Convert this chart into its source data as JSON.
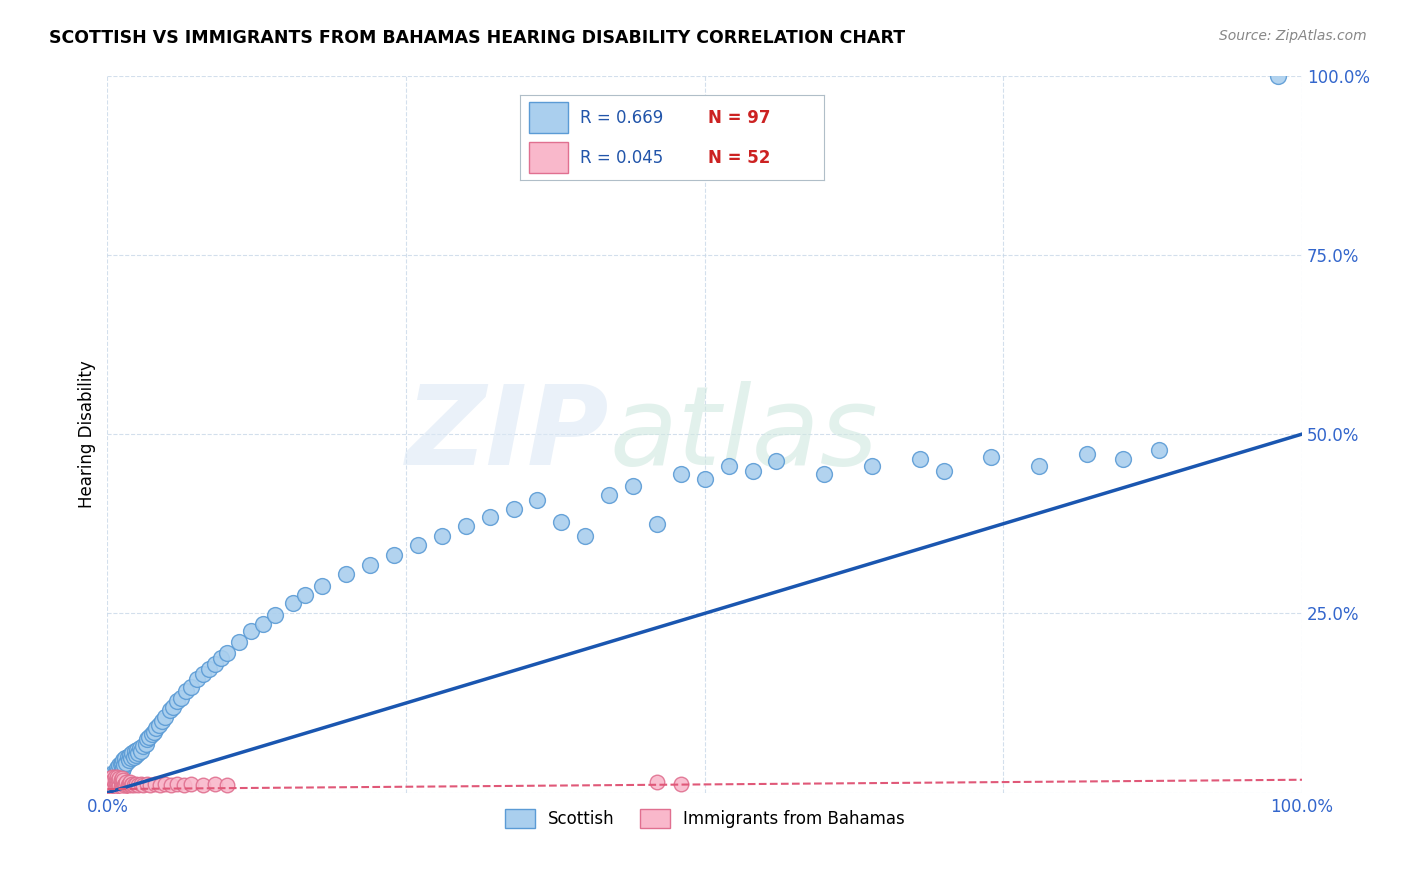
{
  "title": "SCOTTISH VS IMMIGRANTS FROM BAHAMAS HEARING DISABILITY CORRELATION CHART",
  "source": "Source: ZipAtlas.com",
  "ylabel": "Hearing Disability",
  "xlim": [
    0,
    1
  ],
  "ylim": [
    0,
    1
  ],
  "xticks": [
    0.0,
    0.25,
    0.5,
    0.75,
    1.0
  ],
  "xtick_labels": [
    "0.0%",
    "",
    "",
    "",
    "100.0%"
  ],
  "yticks": [
    0.0,
    0.25,
    0.5,
    0.75,
    1.0
  ],
  "ytick_labels": [
    "",
    "25.0%",
    "50.0%",
    "75.0%",
    "100.0%"
  ],
  "scottish_color": "#aacfee",
  "scottish_edge_color": "#5b9bd5",
  "bahamas_color": "#f9b8cb",
  "bahamas_edge_color": "#e07090",
  "trend_blue": "#1a56b0",
  "trend_pink": "#e05878",
  "legend_R1": "R = 0.669",
  "legend_N1": "N = 97",
  "legend_R2": "R = 0.045",
  "legend_N2": "N = 52",
  "tick_color": "#3366cc",
  "grid_color": "#c8d8e8",
  "scottish_x": [
    0.001,
    0.002,
    0.003,
    0.003,
    0.004,
    0.004,
    0.005,
    0.005,
    0.006,
    0.006,
    0.007,
    0.007,
    0.008,
    0.008,
    0.009,
    0.009,
    0.01,
    0.01,
    0.011,
    0.011,
    0.012,
    0.012,
    0.013,
    0.013,
    0.014,
    0.015,
    0.016,
    0.017,
    0.018,
    0.019,
    0.02,
    0.021,
    0.022,
    0.023,
    0.024,
    0.025,
    0.026,
    0.027,
    0.028,
    0.03,
    0.032,
    0.033,
    0.035,
    0.037,
    0.039,
    0.041,
    0.043,
    0.046,
    0.048,
    0.052,
    0.055,
    0.058,
    0.062,
    0.066,
    0.07,
    0.075,
    0.08,
    0.085,
    0.09,
    0.095,
    0.1,
    0.11,
    0.12,
    0.13,
    0.14,
    0.155,
    0.165,
    0.18,
    0.2,
    0.22,
    0.24,
    0.26,
    0.28,
    0.3,
    0.32,
    0.34,
    0.36,
    0.38,
    0.4,
    0.42,
    0.44,
    0.46,
    0.48,
    0.5,
    0.52,
    0.54,
    0.56,
    0.6,
    0.64,
    0.68,
    0.7,
    0.74,
    0.78,
    0.82,
    0.85,
    0.88,
    0.98
  ],
  "scottish_y": [
    0.008,
    0.005,
    0.012,
    0.018,
    0.01,
    0.022,
    0.015,
    0.028,
    0.012,
    0.025,
    0.018,
    0.03,
    0.022,
    0.035,
    0.02,
    0.032,
    0.025,
    0.038,
    0.028,
    0.04,
    0.03,
    0.042,
    0.035,
    0.045,
    0.038,
    0.048,
    0.042,
    0.05,
    0.045,
    0.052,
    0.048,
    0.055,
    0.05,
    0.058,
    0.052,
    0.06,
    0.055,
    0.062,
    0.058,
    0.065,
    0.068,
    0.075,
    0.078,
    0.082,
    0.085,
    0.09,
    0.095,
    0.1,
    0.105,
    0.115,
    0.12,
    0.128,
    0.132,
    0.142,
    0.148,
    0.158,
    0.165,
    0.172,
    0.18,
    0.188,
    0.195,
    0.21,
    0.225,
    0.235,
    0.248,
    0.265,
    0.275,
    0.288,
    0.305,
    0.318,
    0.332,
    0.345,
    0.358,
    0.372,
    0.385,
    0.395,
    0.408,
    0.378,
    0.358,
    0.415,
    0.428,
    0.375,
    0.445,
    0.438,
    0.455,
    0.448,
    0.462,
    0.445,
    0.455,
    0.465,
    0.448,
    0.468,
    0.455,
    0.472,
    0.465,
    0.478,
    1.0
  ],
  "bahamas_x": [
    0.001,
    0.002,
    0.002,
    0.003,
    0.003,
    0.004,
    0.004,
    0.005,
    0.005,
    0.006,
    0.006,
    0.007,
    0.007,
    0.008,
    0.008,
    0.009,
    0.009,
    0.01,
    0.01,
    0.011,
    0.011,
    0.012,
    0.012,
    0.013,
    0.013,
    0.014,
    0.015,
    0.016,
    0.017,
    0.018,
    0.019,
    0.02,
    0.021,
    0.022,
    0.024,
    0.026,
    0.028,
    0.03,
    0.033,
    0.036,
    0.04,
    0.044,
    0.048,
    0.053,
    0.058,
    0.064,
    0.07,
    0.08,
    0.09,
    0.1,
    0.46,
    0.48
  ],
  "bahamas_y": [
    0.005,
    0.012,
    0.018,
    0.008,
    0.02,
    0.01,
    0.022,
    0.008,
    0.018,
    0.012,
    0.022,
    0.008,
    0.018,
    0.012,
    0.022,
    0.008,
    0.018,
    0.01,
    0.02,
    0.008,
    0.018,
    0.01,
    0.02,
    0.008,
    0.018,
    0.01,
    0.012,
    0.015,
    0.01,
    0.012,
    0.015,
    0.01,
    0.012,
    0.01,
    0.012,
    0.01,
    0.012,
    0.01,
    0.012,
    0.01,
    0.012,
    0.01,
    0.012,
    0.01,
    0.012,
    0.01,
    0.012,
    0.01,
    0.012,
    0.01,
    0.015,
    0.012
  ],
  "trend1_x": [
    0.0,
    1.0
  ],
  "trend1_y": [
    0.0,
    0.5
  ],
  "trend2_x": [
    0.0,
    1.0
  ],
  "trend2_y": [
    0.005,
    0.018
  ]
}
